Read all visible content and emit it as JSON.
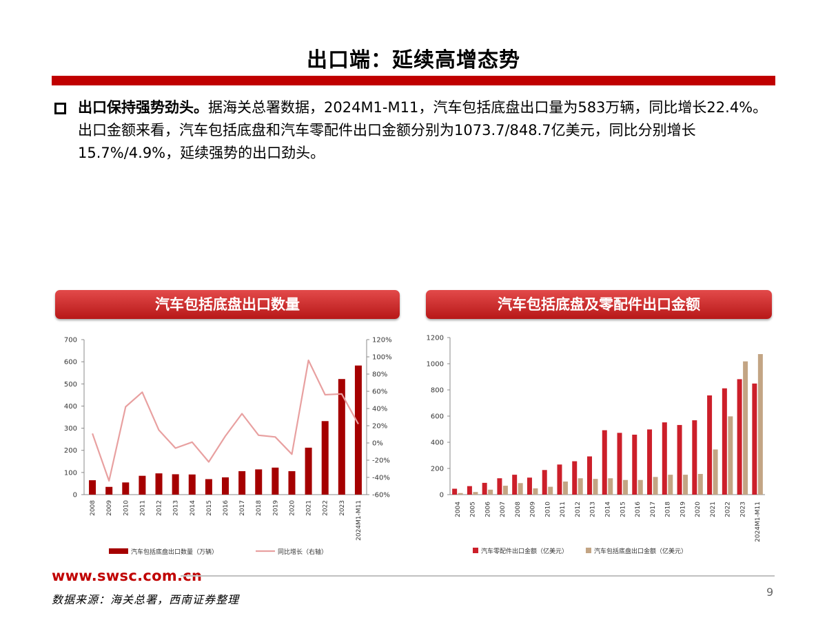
{
  "slide": {
    "title": "出口端：延续高增态势",
    "bullet_lead": "出口保持强势劲头。",
    "bullet_text": "据海关总署数据，2024M1-M11，汽车包括底盘出口量为583万辆，同比增长22.4%。出口金额来看，汽车包括底盘和汽车零配件出口金额分别为1073.7/848.7亿美元，同比分别增长15.7%/4.9%，延续强势的出口劲头。",
    "footer_url": "www.swsc.com.cn",
    "source": "数据来源：海关总署，西南证券整理",
    "page_number": "9"
  },
  "colors": {
    "accent_red": "#c00000",
    "bar_dark_red": "#a50000",
    "line_pink": "#e8a0a0",
    "bar_red": "#cc1f2a",
    "bar_tan": "#c3a584"
  },
  "chart_data": [
    {
      "type": "bar",
      "title": "汽车包括底盘出口数量",
      "categories": [
        "2008",
        "2009",
        "2010",
        "2011",
        "2012",
        "2013",
        "2014",
        "2015",
        "2016",
        "2017",
        "2018",
        "2019",
        "2020",
        "2021",
        "2022",
        "2023",
        "2024M1-M11"
      ],
      "series": [
        {
          "name": "汽车包括底盘出口数量（万辆）",
          "type": "bar",
          "axis": "left",
          "values": [
            65,
            35,
            55,
            85,
            96,
            92,
            91,
            70,
            78,
            106,
            114,
            122,
            106,
            212,
            332,
            522,
            583
          ]
        },
        {
          "name": "同比增长（右轴）",
          "type": "line",
          "axis": "right",
          "values": [
            11,
            -44,
            42,
            59,
            15,
            -6,
            1,
            -22,
            8,
            34,
            9,
            7,
            -13,
            96,
            56,
            57,
            22
          ]
        }
      ],
      "y_left": {
        "lim": [
          0,
          700
        ],
        "ticks": [
          "0",
          "100",
          "200",
          "300",
          "400",
          "500",
          "600",
          "700"
        ]
      },
      "y_right": {
        "lim": [
          -60,
          120
        ],
        "ticks": [
          "-60%",
          "-40%",
          "-20%",
          "0%",
          "20%",
          "40%",
          "60%",
          "80%",
          "100%",
          "120%"
        ]
      },
      "legend": "bottom"
    },
    {
      "type": "bar",
      "title": "汽车包括底盘及零配件出口金额",
      "categories": [
        "2004",
        "2005",
        "2006",
        "2007",
        "2008",
        "2009",
        "2010",
        "2011",
        "2012",
        "2013",
        "2014",
        "2015",
        "2016",
        "2017",
        "2018",
        "2019",
        "2020",
        "2021",
        "2022",
        "2023",
        "2024M1-M11"
      ],
      "series": [
        {
          "name": "汽车零配件出口金额（亿美元）",
          "values": [
            45,
            65,
            90,
            125,
            152,
            130,
            188,
            230,
            255,
            292,
            492,
            472,
            458,
            498,
            552,
            532,
            568,
            758,
            812,
            882,
            848.7
          ]
        },
        {
          "name": "汽车包括底盘出口金额（亿美元）",
          "values": [
            12,
            20,
            38,
            68,
            88,
            48,
            60,
            100,
            125,
            120,
            125,
            112,
            112,
            135,
            152,
            152,
            158,
            345,
            598,
            1018,
            1073.7
          ]
        }
      ],
      "y": {
        "lim": [
          0,
          1200
        ],
        "ticks": [
          "0",
          "200",
          "400",
          "600",
          "800",
          "1000",
          "1200"
        ]
      },
      "legend": "bottom"
    }
  ]
}
